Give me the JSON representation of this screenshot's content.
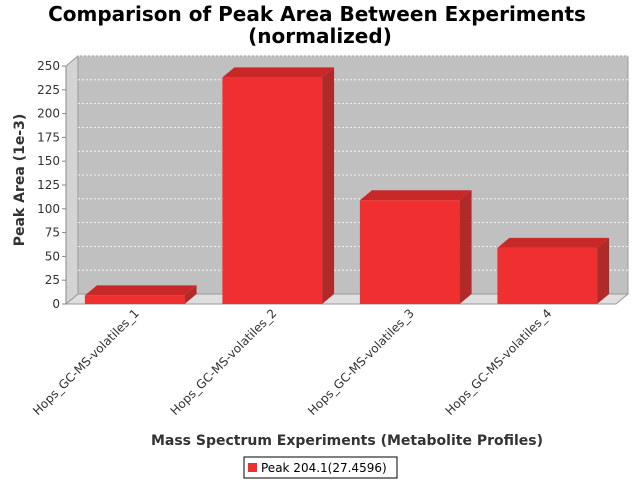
{
  "chart_data": {
    "type": "bar",
    "title": "Comparison of Peak Area Between Experiments",
    "subtitle": "(normalized)",
    "xlabel": "Mass Spectrum Experiments (Metabolite Profiles)",
    "ylabel": "Peak Area (1e-3)",
    "ylim": [
      0,
      250
    ],
    "yticks": [
      0,
      25,
      50,
      75,
      100,
      125,
      150,
      175,
      200,
      225,
      250
    ],
    "grid": true,
    "categories": [
      "Hops_GC-MS-volatiles_1",
      "Hops_GC-MS-volatiles_2",
      "Hops_GC-MS-volatiles_3",
      "Hops_GC-MS-volatiles_4"
    ],
    "series": [
      {
        "name": "Peak 204.1(27.4596)",
        "values": [
          9,
          238,
          109,
          59
        ],
        "color": "#f03030"
      }
    ],
    "legend": "bottom"
  }
}
